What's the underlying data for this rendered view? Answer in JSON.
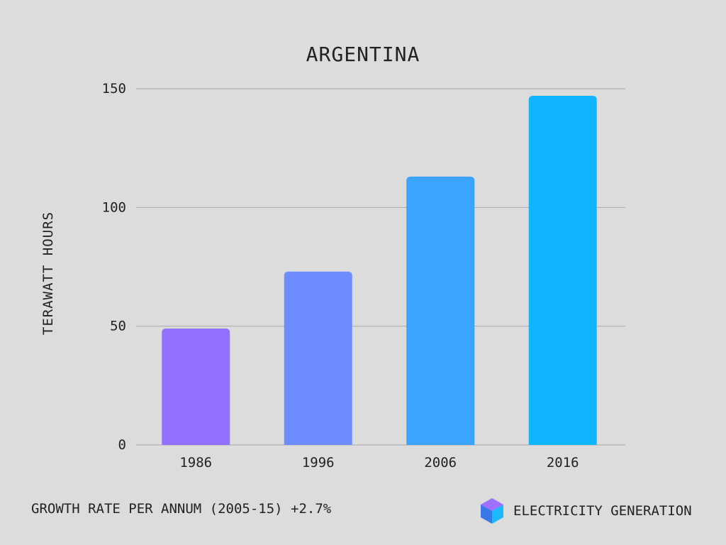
{
  "chart_data": {
    "type": "bar",
    "title": "ARGENTINA",
    "categories": [
      "1986",
      "1996",
      "2006",
      "2016"
    ],
    "values": [
      49,
      73,
      113,
      147
    ],
    "bar_colors": [
      "#9370ff",
      "#6c8cff",
      "#3aa4ff",
      "#10b6ff"
    ],
    "ylabel": "TERAWATT HOURS",
    "xlabel": "",
    "ylim": [
      0,
      150
    ],
    "yticks": [
      0,
      50,
      100,
      150
    ],
    "grid": true,
    "legend": "none"
  },
  "colors": {
    "background": "#dcdcdc",
    "gridline": "#aaaaaa",
    "text": "#222222"
  },
  "footer": {
    "growth_text": "GROWTH RATE PER ANNUM (2005-15) +2.7%",
    "brand_label": "ELECTRICITY GENERATION",
    "brand_icon": "cube-icon"
  }
}
